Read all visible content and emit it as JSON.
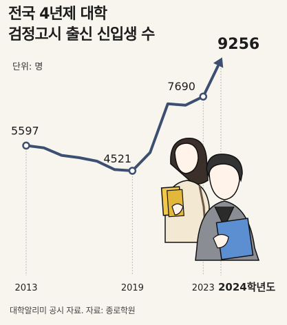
{
  "title_line1": "전국 4년제 대학",
  "title_line2": "검정고시 출신 신입생 수",
  "unit": "단위: 명",
  "source": "대학알리미 공시 자료. 자료: 종로학원",
  "colors": {
    "line": "#3d4f70",
    "background": "#f7f5ee",
    "guide": "#b8b8b8"
  },
  "chart_data": {
    "type": "line",
    "series": [
      {
        "x": [
          2013,
          2014,
          2015,
          2016,
          2017,
          2018,
          2019,
          2020,
          2021,
          2022,
          2023,
          2024
        ],
        "values": [
          5597,
          5500,
          5180,
          5080,
          4930,
          4570,
          4521,
          5300,
          7380,
          7320,
          7690,
          9256
        ]
      }
    ],
    "x_tick_labels": [
      "2013",
      "2019",
      "2023",
      "2024학년도"
    ],
    "x_tick_years": [
      2013,
      2019,
      2023,
      2024
    ],
    "labeled_points": [
      {
        "x": 2013,
        "label": "5597"
      },
      {
        "x": 2019,
        "label": "4521"
      },
      {
        "x": 2023,
        "label": "7690"
      },
      {
        "x": 2024,
        "label": "9256"
      }
    ],
    "grid": false,
    "legend": "none"
  }
}
